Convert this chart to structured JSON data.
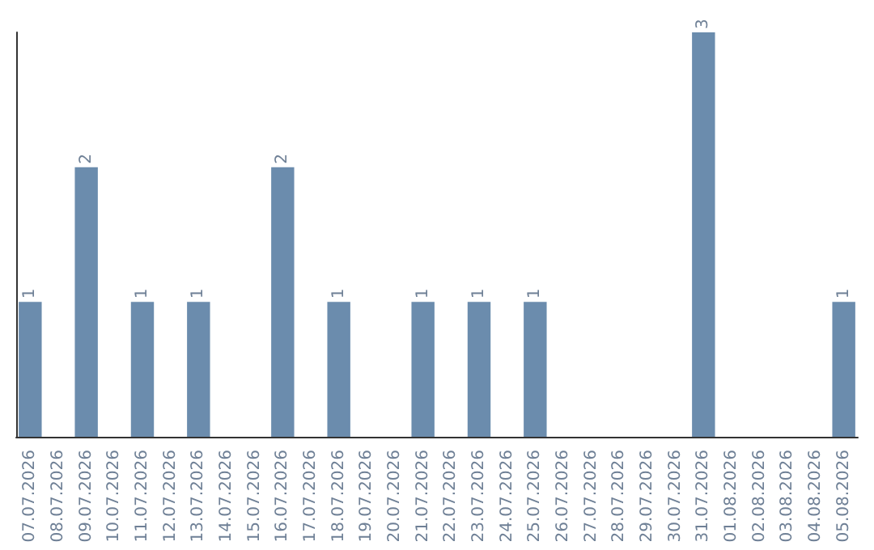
{
  "chart_data": {
    "type": "bar",
    "categories": [
      "07.07.2026",
      "08.07.2026",
      "09.07.2026",
      "10.07.2026",
      "11.07.2026",
      "12.07.2026",
      "13.07.2026",
      "14.07.2026",
      "15.07.2026",
      "16.07.2026",
      "17.07.2026",
      "18.07.2026",
      "19.07.2026",
      "20.07.2026",
      "21.07.2026",
      "22.07.2026",
      "23.07.2026",
      "24.07.2026",
      "25.07.2026",
      "26.07.2026",
      "27.07.2026",
      "28.07.2026",
      "29.07.2026",
      "30.07.2026",
      "31.07.2026",
      "01.08.2026",
      "02.08.2026",
      "03.08.2026",
      "04.08.2026",
      "05.08.2026"
    ],
    "values": [
      1,
      0,
      2,
      0,
      1,
      0,
      1,
      0,
      0,
      2,
      0,
      1,
      0,
      0,
      1,
      0,
      1,
      0,
      1,
      0,
      0,
      0,
      0,
      0,
      3,
      0,
      0,
      0,
      0,
      1
    ],
    "value_labels": [
      "1",
      null,
      "2",
      null,
      "1",
      null,
      "1",
      null,
      null,
      "2",
      null,
      "1",
      null,
      null,
      "1",
      null,
      "1",
      null,
      "1",
      null,
      null,
      null,
      null,
      null,
      "3",
      null,
      null,
      null,
      null,
      "1"
    ],
    "color": "#6b8cad"
  }
}
